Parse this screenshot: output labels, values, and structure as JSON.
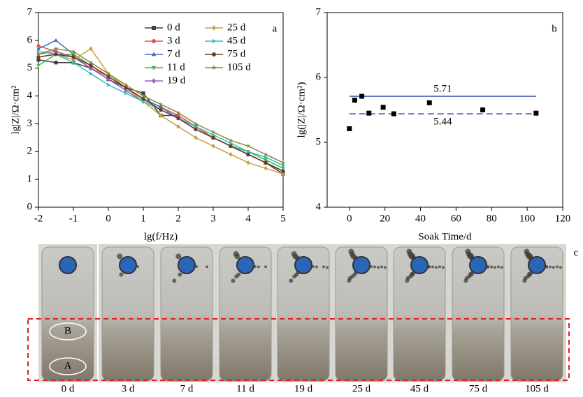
{
  "chart_data": [
    {
      "type": "line",
      "panel_label": "a",
      "x_label": "lg(f/Hz)",
      "y_label": "lg|Z|/Ω·cm²",
      "x": [
        -2,
        -1.5,
        -1,
        -0.5,
        0,
        0.5,
        1,
        1.5,
        2,
        2.5,
        3,
        3.5,
        4,
        4.5,
        5
      ],
      "xlim": [
        -2,
        5
      ],
      "xticks": [
        -2,
        -1,
        0,
        1,
        2,
        3,
        4,
        5
      ],
      "ylim": [
        0,
        7
      ],
      "yticks": [
        0,
        1,
        2,
        3,
        4,
        5,
        6,
        7
      ],
      "series": [
        {
          "name": "0 d",
          "color": "#404040",
          "marker": "square",
          "values": [
            5.3,
            5.2,
            5.2,
            5.0,
            4.6,
            4.3,
            4.1,
            3.3,
            3.3,
            2.9,
            2.5,
            2.2,
            1.9,
            1.6,
            1.2
          ]
        },
        {
          "name": "3 d",
          "color": "#e8534d",
          "marker": "circle",
          "values": [
            5.8,
            5.6,
            5.4,
            5.0,
            4.7,
            4.3,
            3.9,
            3.6,
            3.3,
            2.9,
            2.5,
            2.2,
            1.9,
            1.6,
            1.3
          ]
        },
        {
          "name": "7 d",
          "color": "#3a6fc4",
          "marker": "triangle",
          "values": [
            5.7,
            6.0,
            5.5,
            5.1,
            4.7,
            4.3,
            3.9,
            3.6,
            3.2,
            2.8,
            2.5,
            2.2,
            1.9,
            1.6,
            1.3
          ]
        },
        {
          "name": "11 d",
          "color": "#3cb44b",
          "marker": "triangle-down",
          "values": [
            5.1,
            5.5,
            5.5,
            5.1,
            4.7,
            4.3,
            3.8,
            3.5,
            3.2,
            2.8,
            2.5,
            2.2,
            2.0,
            1.7,
            1.4
          ]
        },
        {
          "name": "19 d",
          "color": "#9d5cc4",
          "marker": "diamond",
          "values": [
            5.5,
            5.6,
            5.4,
            5.0,
            4.6,
            4.2,
            3.8,
            3.5,
            3.2,
            2.8,
            2.5,
            2.2,
            1.9,
            1.6,
            1.3
          ]
        },
        {
          "name": "25 d",
          "color": "#c8a040",
          "marker": "diamond",
          "values": [
            5.4,
            5.5,
            5.3,
            5.7,
            4.8,
            4.3,
            3.8,
            3.3,
            2.9,
            2.5,
            2.2,
            1.9,
            1.6,
            1.4,
            1.2
          ]
        },
        {
          "name": "45 d",
          "color": "#2ec4b6",
          "marker": "triangle-right",
          "values": [
            5.6,
            5.5,
            5.2,
            4.8,
            4.4,
            4.1,
            3.8,
            3.5,
            3.2,
            2.9,
            2.6,
            2.3,
            2.0,
            1.8,
            1.5
          ]
        },
        {
          "name": "75 d",
          "color": "#6b3b2a",
          "marker": "circle",
          "values": [
            5.4,
            5.5,
            5.4,
            5.1,
            4.7,
            4.3,
            3.9,
            3.5,
            3.2,
            2.8,
            2.5,
            2.2,
            1.9,
            1.6,
            1.3
          ]
        },
        {
          "name": "105 d",
          "color": "#8a8a3a",
          "marker": "star",
          "values": [
            5.5,
            5.7,
            5.6,
            5.2,
            4.8,
            4.4,
            4.0,
            3.7,
            3.4,
            3.0,
            2.7,
            2.4,
            2.2,
            1.9,
            1.6
          ]
        }
      ]
    },
    {
      "type": "scatter",
      "panel_label": "b",
      "x_label": "Soak Time/d",
      "y_label": "lg(|Z|/Ω·cm²)",
      "x": [
        0,
        3,
        7,
        11,
        19,
        25,
        45,
        75,
        105
      ],
      "values": [
        5.21,
        5.65,
        5.71,
        5.45,
        5.54,
        5.44,
        5.61,
        5.5,
        5.45
      ],
      "color": "#000000",
      "xlim": [
        -12.5,
        120
      ],
      "xticks": [
        0,
        20,
        40,
        60,
        80,
        100,
        120
      ],
      "ylim": [
        4,
        7
      ],
      "yticks": [
        4,
        5,
        6,
        7
      ],
      "reference_lines": [
        {
          "value": 5.71,
          "style": "solid",
          "color": "#2f4fa8"
        },
        {
          "value": 5.44,
          "style": "dashed",
          "color": "#2f4fa8"
        }
      ]
    }
  ],
  "photo_panel": {
    "panel_label": "c",
    "samples": [
      "0 d",
      "3 d",
      "7 d",
      "11 d",
      "19 d",
      "25 d",
      "45 d",
      "75 d",
      "105 d"
    ],
    "regions": [
      "B",
      "A"
    ]
  }
}
